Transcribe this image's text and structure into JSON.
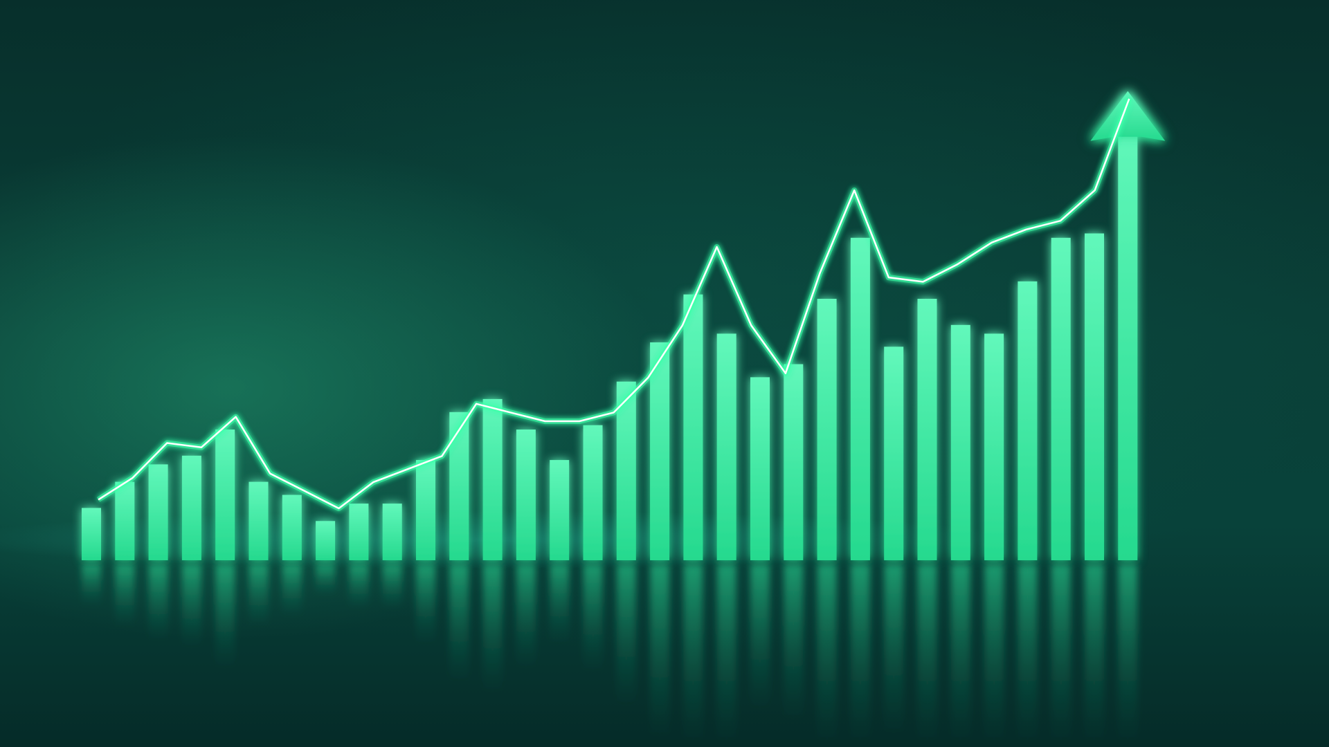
{
  "chart_data": {
    "type": "bar",
    "title": "",
    "xlabel": "",
    "ylabel": "",
    "ylim": [
      0,
      100
    ],
    "grid": false,
    "legend": "none",
    "series": [
      {
        "type": "bar",
        "values": [
          12,
          18,
          22,
          24,
          30,
          18,
          15,
          9,
          13,
          13,
          23,
          34,
          37,
          30,
          23,
          31,
          41,
          50,
          61,
          52,
          42,
          45,
          60,
          74,
          49,
          60,
          54,
          52,
          64,
          74,
          75,
          101
        ]
      },
      {
        "type": "line",
        "values": [
          12,
          17,
          25,
          24,
          31,
          18,
          14,
          10,
          16,
          19,
          22,
          34,
          32,
          30,
          30,
          32,
          40,
          52,
          70,
          52,
          41,
          64,
          83,
          63,
          62,
          66,
          71,
          74,
          76,
          83,
          104
        ]
      }
    ],
    "annotations": [
      {
        "type": "arrow",
        "direction": "up"
      }
    ],
    "colors": {
      "bar": "#2ee59b",
      "bar_light": "#5ef7b8",
      "line": "#ffffff",
      "glow": "#3dffaa",
      "background": "#072f2b"
    }
  }
}
